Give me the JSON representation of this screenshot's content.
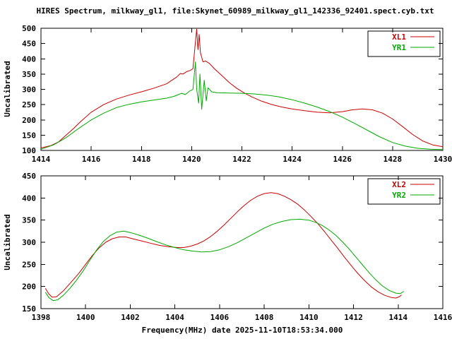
{
  "title": "HIRES Spectrum, milkway_gl1, file:Skynet_60989_milkway_gl1_142336_92401.spect.cyb.txt",
  "xlabel": "Frequency(MHz) date 2025-11-10T18:53:34.000",
  "colors": {
    "red": "#cc0000",
    "green": "#00aa00",
    "axis": "#000000",
    "background": "#ffffff"
  },
  "chart_data": [
    {
      "type": "line",
      "ylabel": "Uncalibrated",
      "xlim": [
        1414,
        1430
      ],
      "ylim": [
        100,
        500
      ],
      "xticks": [
        1414,
        1416,
        1418,
        1420,
        1422,
        1424,
        1426,
        1428,
        1430
      ],
      "yticks": [
        100,
        150,
        200,
        250,
        300,
        350,
        400,
        450,
        500
      ],
      "grid": false,
      "legend_position": "top-right",
      "series": [
        {
          "name": "XL1",
          "color": "#cc0000",
          "points": [
            [
              1414.0,
              108
            ],
            [
              1414.4,
              116
            ],
            [
              1414.7,
              128
            ],
            [
              1415.0,
              150
            ],
            [
              1415.3,
              172
            ],
            [
              1415.6,
              196
            ],
            [
              1416.0,
              225
            ],
            [
              1416.5,
              250
            ],
            [
              1417.0,
              268
            ],
            [
              1417.5,
              281
            ],
            [
              1418.0,
              292
            ],
            [
              1418.5,
              304
            ],
            [
              1419.0,
              318
            ],
            [
              1419.4,
              340
            ],
            [
              1419.55,
              352
            ],
            [
              1419.65,
              350
            ],
            [
              1419.8,
              358
            ],
            [
              1419.95,
              362
            ],
            [
              1420.05,
              368
            ],
            [
              1420.15,
              455
            ],
            [
              1420.2,
              497
            ],
            [
              1420.25,
              430
            ],
            [
              1420.3,
              480
            ],
            [
              1420.35,
              420
            ],
            [
              1420.45,
              390
            ],
            [
              1420.55,
              393
            ],
            [
              1420.7,
              385
            ],
            [
              1420.9,
              368
            ],
            [
              1421.2,
              345
            ],
            [
              1421.5,
              322
            ],
            [
              1421.8,
              303
            ],
            [
              1422.1,
              288
            ],
            [
              1422.4,
              275
            ],
            [
              1422.8,
              261
            ],
            [
              1423.2,
              250
            ],
            [
              1423.6,
              242
            ],
            [
              1424.0,
              236
            ],
            [
              1424.5,
              230
            ],
            [
              1425.0,
              225
            ],
            [
              1425.5,
              223
            ],
            [
              1426.0,
              227
            ],
            [
              1426.4,
              233
            ],
            [
              1426.8,
              236
            ],
            [
              1427.2,
              233
            ],
            [
              1427.6,
              222
            ],
            [
              1428.0,
              203
            ],
            [
              1428.4,
              178
            ],
            [
              1428.8,
              152
            ],
            [
              1429.2,
              131
            ],
            [
              1429.6,
              118
            ],
            [
              1430.0,
              112
            ]
          ]
        },
        {
          "name": "YR1",
          "color": "#00aa00",
          "points": [
            [
              1414.0,
              104
            ],
            [
              1414.5,
              118
            ],
            [
              1415.0,
              142
            ],
            [
              1415.5,
              172
            ],
            [
              1416.0,
              200
            ],
            [
              1416.5,
              222
            ],
            [
              1417.0,
              240
            ],
            [
              1417.5,
              251
            ],
            [
              1418.0,
              259
            ],
            [
              1418.5,
              265
            ],
            [
              1419.0,
              271
            ],
            [
              1419.3,
              277
            ],
            [
              1419.6,
              287
            ],
            [
              1419.75,
              283
            ],
            [
              1419.9,
              293
            ],
            [
              1420.05,
              300
            ],
            [
              1420.15,
              390
            ],
            [
              1420.2,
              300
            ],
            [
              1420.28,
              255
            ],
            [
              1420.33,
              350
            ],
            [
              1420.4,
              235
            ],
            [
              1420.5,
              330
            ],
            [
              1420.58,
              262
            ],
            [
              1420.65,
              305
            ],
            [
              1420.8,
              292
            ],
            [
              1421.0,
              289
            ],
            [
              1421.5,
              288
            ],
            [
              1422.0,
              287
            ],
            [
              1422.5,
              285
            ],
            [
              1423.0,
              281
            ],
            [
              1423.5,
              275
            ],
            [
              1424.0,
              266
            ],
            [
              1424.5,
              255
            ],
            [
              1425.0,
              242
            ],
            [
              1425.5,
              227
            ],
            [
              1426.0,
              209
            ],
            [
              1426.5,
              188
            ],
            [
              1427.0,
              166
            ],
            [
              1427.5,
              144
            ],
            [
              1428.0,
              126
            ],
            [
              1428.5,
              114
            ],
            [
              1429.0,
              107
            ],
            [
              1429.5,
              104
            ],
            [
              1430.0,
              103
            ]
          ]
        }
      ]
    },
    {
      "type": "line",
      "ylabel": "Uncalibrated",
      "xlim": [
        1398,
        1416
      ],
      "ylim": [
        150,
        450
      ],
      "xticks": [
        1398,
        1400,
        1402,
        1404,
        1406,
        1408,
        1410,
        1412,
        1414,
        1416
      ],
      "yticks": [
        150,
        200,
        250,
        300,
        350,
        400,
        450
      ],
      "grid": false,
      "legend_position": "top-right",
      "series": [
        {
          "name": "XL2",
          "color": "#cc0000",
          "points": [
            [
              1398.2,
              196
            ],
            [
              1398.35,
              183
            ],
            [
              1398.5,
              176
            ],
            [
              1398.7,
              177
            ],
            [
              1399.0,
              190
            ],
            [
              1399.3,
              207
            ],
            [
              1399.7,
              230
            ],
            [
              1400.0,
              250
            ],
            [
              1400.3,
              270
            ],
            [
              1400.6,
              287
            ],
            [
              1400.9,
              300
            ],
            [
              1401.2,
              308
            ],
            [
              1401.5,
              312
            ],
            [
              1401.8,
              312
            ],
            [
              1402.1,
              308
            ],
            [
              1402.5,
              303
            ],
            [
              1402.9,
              298
            ],
            [
              1403.3,
              293
            ],
            [
              1403.7,
              290
            ],
            [
              1404.1,
              288
            ],
            [
              1404.4,
              288
            ],
            [
              1404.7,
              291
            ],
            [
              1405.0,
              296
            ],
            [
              1405.3,
              303
            ],
            [
              1405.6,
              313
            ],
            [
              1405.9,
              325
            ],
            [
              1406.2,
              339
            ],
            [
              1406.5,
              354
            ],
            [
              1406.8,
              369
            ],
            [
              1407.1,
              383
            ],
            [
              1407.4,
              395
            ],
            [
              1407.7,
              404
            ],
            [
              1408.0,
              410
            ],
            [
              1408.3,
              412
            ],
            [
              1408.6,
              410
            ],
            [
              1408.9,
              404
            ],
            [
              1409.2,
              396
            ],
            [
              1409.5,
              386
            ],
            [
              1409.8,
              373
            ],
            [
              1410.1,
              358
            ],
            [
              1410.4,
              342
            ],
            [
              1410.7,
              324
            ],
            [
              1411.0,
              305
            ],
            [
              1411.3,
              286
            ],
            [
              1411.6,
              266
            ],
            [
              1411.9,
              247
            ],
            [
              1412.2,
              229
            ],
            [
              1412.5,
              213
            ],
            [
              1412.8,
              199
            ],
            [
              1413.1,
              188
            ],
            [
              1413.4,
              180
            ],
            [
              1413.7,
              175
            ],
            [
              1413.9,
              174
            ],
            [
              1414.05,
              177
            ],
            [
              1414.15,
              181
            ]
          ]
        },
        {
          "name": "YR2",
          "color": "#00aa00",
          "points": [
            [
              1398.2,
              187
            ],
            [
              1398.35,
              175
            ],
            [
              1398.55,
              168
            ],
            [
              1398.75,
              170
            ],
            [
              1399.0,
              180
            ],
            [
              1399.3,
              196
            ],
            [
              1399.6,
              215
            ],
            [
              1399.9,
              236
            ],
            [
              1400.2,
              260
            ],
            [
              1400.5,
              283
            ],
            [
              1400.8,
              302
            ],
            [
              1401.1,
              315
            ],
            [
              1401.4,
              323
            ],
            [
              1401.7,
              325
            ],
            [
              1402.0,
              322
            ],
            [
              1402.4,
              316
            ],
            [
              1402.8,
              309
            ],
            [
              1403.2,
              301
            ],
            [
              1403.6,
              294
            ],
            [
              1404.0,
              288
            ],
            [
              1404.4,
              283
            ],
            [
              1404.8,
              280
            ],
            [
              1405.2,
              278
            ],
            [
              1405.6,
              279
            ],
            [
              1406.0,
              283
            ],
            [
              1406.4,
              290
            ],
            [
              1406.8,
              299
            ],
            [
              1407.2,
              310
            ],
            [
              1407.6,
              321
            ],
            [
              1408.0,
              332
            ],
            [
              1408.4,
              341
            ],
            [
              1408.8,
              347
            ],
            [
              1409.2,
              351
            ],
            [
              1409.6,
              352
            ],
            [
              1410.0,
              350
            ],
            [
              1410.3,
              345
            ],
            [
              1410.6,
              338
            ],
            [
              1410.9,
              328
            ],
            [
              1411.2,
              316
            ],
            [
              1411.5,
              301
            ],
            [
              1411.8,
              285
            ],
            [
              1412.1,
              267
            ],
            [
              1412.4,
              249
            ],
            [
              1412.7,
              231
            ],
            [
              1413.0,
              215
            ],
            [
              1413.3,
              201
            ],
            [
              1413.6,
              191
            ],
            [
              1413.9,
              185
            ],
            [
              1414.1,
              184
            ],
            [
              1414.25,
              189
            ]
          ]
        }
      ]
    }
  ]
}
